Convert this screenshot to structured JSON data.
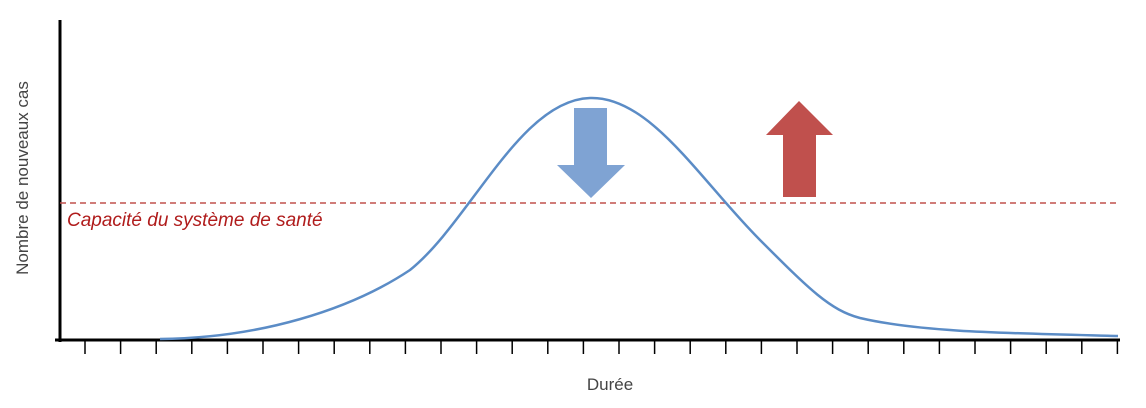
{
  "axes": {
    "y_label": "Nombre  de nouveaux cas",
    "x_label": "Durée"
  },
  "capacity": {
    "label": "Capacité du système de santé"
  }
}
